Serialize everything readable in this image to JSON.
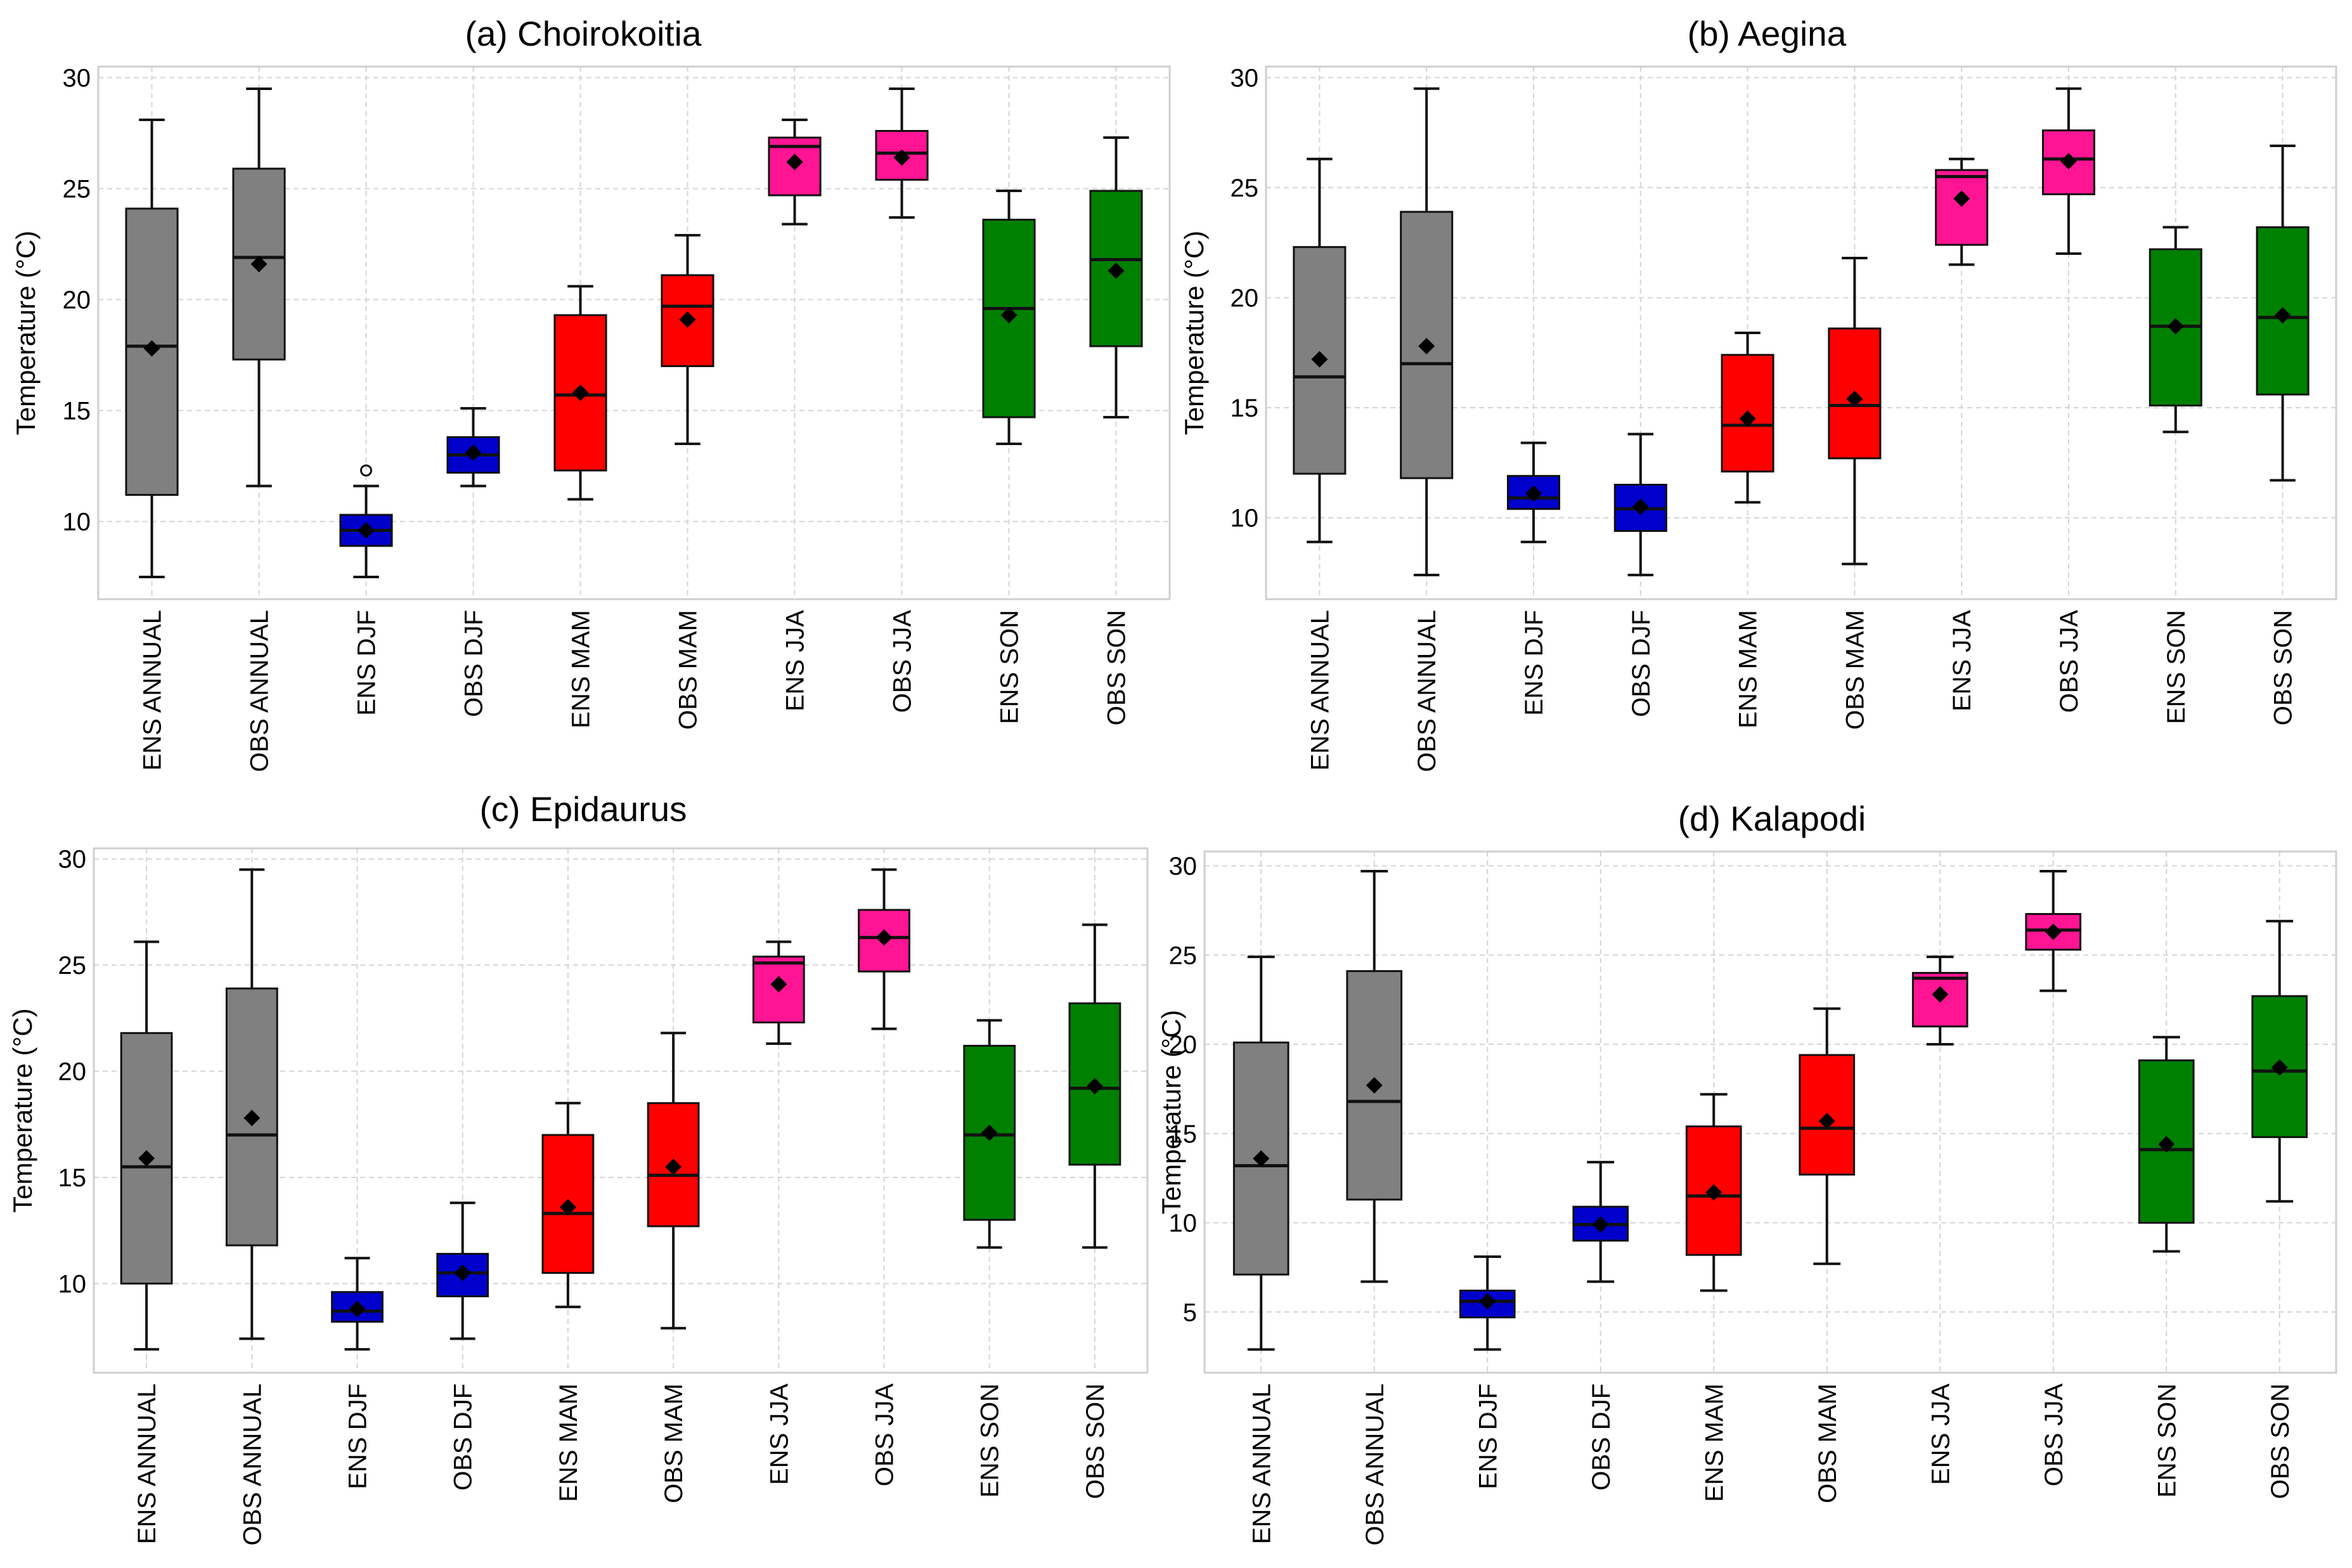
{
  "figure": {
    "colors": {
      "ANNUAL": "#808080",
      "DJF": "#0000cc",
      "MAM": "#ff0000",
      "JJA": "#ff1493",
      "SON": "#008000"
    }
  },
  "chart_data": [
    {
      "type": "box",
      "title": "(a) Choirokoitia",
      "ylabel": "Temperature (°C)",
      "ylim": [
        6.5,
        30.5
      ],
      "yticks": [
        10,
        15,
        20,
        25,
        30
      ],
      "grid": true,
      "categories": [
        "ENS ANNUAL",
        "OBS ANNUAL",
        "ENS DJF",
        "OBS DJF",
        "ENS MAM",
        "OBS MAM",
        "ENS JJA",
        "OBS JJA",
        "ENS SON",
        "OBS SON"
      ],
      "groups": [
        "ANNUAL",
        "ANNUAL",
        "DJF",
        "DJF",
        "MAM",
        "MAM",
        "JJA",
        "JJA",
        "SON",
        "SON"
      ],
      "whislo": [
        7.5,
        11.6,
        7.5,
        11.6,
        11.0,
        13.5,
        23.4,
        23.7,
        13.5,
        14.7
      ],
      "q1": [
        11.2,
        17.3,
        8.9,
        12.2,
        12.3,
        17.0,
        24.7,
        25.4,
        14.7,
        17.9
      ],
      "med": [
        17.9,
        21.9,
        9.6,
        13.0,
        15.7,
        19.7,
        26.9,
        26.6,
        19.6,
        21.8
      ],
      "q3": [
        24.1,
        25.9,
        10.3,
        13.8,
        19.3,
        21.1,
        27.3,
        27.6,
        23.6,
        24.9
      ],
      "whishi": [
        28.1,
        29.5,
        11.6,
        15.1,
        20.6,
        22.9,
        28.1,
        29.5,
        24.9,
        27.3
      ],
      "mean": [
        17.8,
        21.6,
        9.6,
        13.1,
        15.8,
        19.1,
        26.2,
        26.4,
        19.3,
        21.3
      ],
      "fliers": [
        [],
        [],
        [
          12.3
        ],
        [],
        [],
        [],
        [],
        [],
        [],
        []
      ]
    },
    {
      "type": "box",
      "title": "(b) Aegina",
      "ylabel": "Temperature (°C)",
      "ylim": [
        6.3,
        30.5
      ],
      "yticks": [
        10,
        15,
        20,
        25,
        30
      ],
      "grid": true,
      "categories": [
        "ENS ANNUAL",
        "OBS ANNUAL",
        "ENS DJF",
        "OBS DJF",
        "ENS MAM",
        "OBS MAM",
        "ENS JJA",
        "OBS JJA",
        "ENS SON",
        "OBS SON"
      ],
      "groups": [
        "ANNUAL",
        "ANNUAL",
        "DJF",
        "DJF",
        "MAM",
        "MAM",
        "JJA",
        "JJA",
        "SON",
        "SON"
      ],
      "whislo": [
        8.9,
        7.4,
        8.9,
        7.4,
        10.7,
        7.9,
        21.5,
        22.0,
        13.9,
        11.7
      ],
      "q1": [
        12.0,
        11.8,
        10.4,
        9.4,
        12.1,
        12.7,
        22.4,
        24.7,
        15.1,
        15.6
      ],
      "med": [
        16.4,
        17.0,
        10.9,
        10.4,
        14.2,
        15.1,
        25.5,
        26.3,
        18.7,
        19.1
      ],
      "q3": [
        22.3,
        23.9,
        11.9,
        11.5,
        17.4,
        18.6,
        25.8,
        27.6,
        22.2,
        23.2
      ],
      "whishi": [
        26.3,
        29.5,
        13.4,
        13.8,
        18.4,
        21.8,
        26.3,
        29.5,
        23.2,
        26.9
      ],
      "mean": [
        17.2,
        17.8,
        11.1,
        10.5,
        14.5,
        15.4,
        24.5,
        26.2,
        18.7,
        19.2
      ],
      "fliers": [
        [],
        [],
        [],
        [],
        [],
        [],
        [],
        [],
        [],
        []
      ]
    },
    {
      "type": "box",
      "title": "(c) Epidaurus",
      "ylabel": "Temperature (°C)",
      "ylim": [
        5.8,
        30.5
      ],
      "yticks": [
        10,
        15,
        20,
        25,
        30
      ],
      "grid": true,
      "categories": [
        "ENS ANNUAL",
        "OBS ANNUAL",
        "ENS DJF",
        "OBS DJF",
        "ENS MAM",
        "OBS MAM",
        "ENS JJA",
        "OBS JJA",
        "ENS SON",
        "OBS SON"
      ],
      "groups": [
        "ANNUAL",
        "ANNUAL",
        "DJF",
        "DJF",
        "MAM",
        "MAM",
        "JJA",
        "JJA",
        "SON",
        "SON"
      ],
      "whislo": [
        6.9,
        7.4,
        6.9,
        7.4,
        8.9,
        7.9,
        21.3,
        22.0,
        11.7,
        11.7
      ],
      "q1": [
        10.0,
        11.8,
        8.2,
        9.4,
        10.5,
        12.7,
        22.3,
        24.7,
        13.0,
        15.6
      ],
      "med": [
        15.5,
        17.0,
        8.7,
        10.5,
        13.3,
        15.1,
        25.1,
        26.3,
        17.0,
        19.2
      ],
      "q3": [
        21.8,
        23.9,
        9.6,
        11.4,
        17.0,
        18.5,
        25.4,
        27.6,
        21.2,
        23.2
      ],
      "whishi": [
        26.1,
        29.5,
        11.2,
        13.8,
        18.5,
        21.8,
        26.1,
        29.5,
        22.4,
        26.9
      ],
      "mean": [
        15.9,
        17.8,
        8.8,
        10.5,
        13.6,
        15.5,
        24.1,
        26.3,
        17.1,
        19.3
      ],
      "fliers": [
        [],
        [],
        [],
        [],
        [],
        [],
        [],
        [],
        [],
        []
      ]
    },
    {
      "type": "box",
      "title": "(d) Kalapodi",
      "ylabel": "Temperature (°C)",
      "ylim": [
        1.6,
        30.8
      ],
      "yticks": [
        5,
        10,
        15,
        20,
        25,
        30
      ],
      "grid": true,
      "categories": [
        "ENS ANNUAL",
        "OBS ANNUAL",
        "ENS DJF",
        "OBS DJF",
        "ENS MAM",
        "OBS MAM",
        "ENS JJA",
        "OBS JJA",
        "ENS SON",
        "OBS SON"
      ],
      "groups": [
        "ANNUAL",
        "ANNUAL",
        "DJF",
        "DJF",
        "MAM",
        "MAM",
        "JJA",
        "JJA",
        "SON",
        "SON"
      ],
      "whislo": [
        2.9,
        6.7,
        2.9,
        6.7,
        6.2,
        7.7,
        20.0,
        23.0,
        8.4,
        11.2
      ],
      "q1": [
        7.1,
        11.3,
        4.7,
        9.0,
        8.2,
        12.7,
        21.0,
        25.3,
        10.0,
        14.8
      ],
      "med": [
        13.2,
        16.8,
        5.6,
        9.9,
        11.5,
        15.3,
        23.7,
        26.4,
        14.1,
        18.5
      ],
      "q3": [
        20.1,
        24.1,
        6.2,
        10.9,
        15.4,
        19.4,
        24.0,
        27.3,
        19.1,
        22.7
      ],
      "whishi": [
        24.9,
        29.7,
        8.1,
        13.4,
        17.2,
        22.0,
        24.9,
        29.7,
        20.4,
        26.9
      ],
      "mean": [
        13.6,
        17.7,
        5.6,
        9.9,
        11.7,
        15.7,
        22.8,
        26.3,
        14.4,
        18.7
      ],
      "fliers": [
        [],
        [],
        [],
        [],
        [],
        [],
        [],
        [],
        [],
        []
      ]
    }
  ]
}
